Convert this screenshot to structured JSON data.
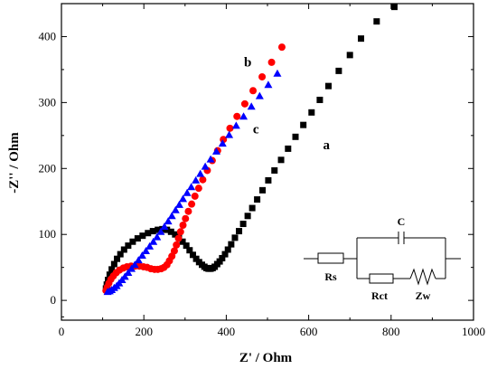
{
  "chart_data": {
    "type": "scatter",
    "xlabel": "Z' / Ohm",
    "ylabel": "-Z'' / Ohm",
    "xlim": [
      0,
      1000
    ],
    "ylim": [
      -30,
      450
    ],
    "xticks": [
      0,
      200,
      400,
      600,
      800,
      1000
    ],
    "yticks": [
      0,
      100,
      200,
      300,
      400
    ],
    "grid": false,
    "series": [
      {
        "name": "a",
        "marker": "square",
        "color": "#000000",
        "x": [
          108,
          110,
          113,
          117,
          122,
          128,
          135,
          143,
          152,
          162,
          173,
          185,
          197,
          210,
          222,
          234,
          245,
          256,
          266,
          276,
          285,
          294,
          303,
          311,
          319,
          327,
          334,
          341,
          347,
          352,
          357,
          362,
          367,
          372,
          378,
          384,
          390,
          397,
          404,
          412,
          421,
          431,
          441,
          452,
          463,
          475,
          488,
          502,
          517,
          533,
          550,
          568,
          587,
          607,
          627,
          648,
          673,
          700,
          727,
          765,
          808
        ],
        "y": [
          18,
          24,
          31,
          39,
          47,
          55,
          63,
          70,
          77,
          83,
          89,
          94,
          98,
          102,
          105,
          107,
          108,
          107,
          104,
          100,
          95,
          89,
          83,
          76,
          69,
          63,
          58,
          54,
          51,
          49,
          48,
          48,
          49,
          51,
          55,
          59,
          64,
          70,
          77,
          85,
          95,
          105,
          116,
          128,
          140,
          153,
          167,
          182,
          197,
          213,
          230,
          248,
          266,
          285,
          304,
          325,
          348,
          372,
          397,
          423,
          445
        ]
      },
      {
        "name": "b",
        "marker": "circle",
        "color": "#ff0000",
        "x": [
          108,
          111,
          115,
          120,
          126,
          133,
          141,
          150,
          159,
          169,
          179,
          189,
          199,
          208,
          217,
          226,
          234,
          242,
          249,
          256,
          262,
          268,
          274,
          279,
          284,
          289,
          295,
          301,
          308,
          316,
          324,
          333,
          343,
          354,
          366,
          379,
          393,
          409,
          426,
          445,
          465,
          487,
          510,
          535
        ],
        "y": [
          15,
          20,
          26,
          32,
          37,
          42,
          46,
          49,
          51,
          52,
          52,
          52,
          51,
          50,
          48,
          47,
          47,
          48,
          50,
          54,
          60,
          67,
          75,
          84,
          94,
          104,
          114,
          124,
          135,
          146,
          158,
          170,
          183,
          197,
          212,
          227,
          244,
          261,
          279,
          298,
          318,
          339,
          361,
          384
        ]
      },
      {
        "name": "c",
        "marker": "triangle",
        "color": "#0000ff",
        "x": [
          112,
          117,
          122,
          128,
          134,
          140,
          147,
          154,
          162,
          170,
          178,
          187,
          196,
          205,
          214,
          223,
          232,
          241,
          250,
          259,
          268,
          277,
          286,
          295,
          305,
          315,
          326,
          337,
          349,
          362,
          376,
          391,
          407,
          424,
          442,
          461,
          481,
          502,
          524
        ],
        "y": [
          13,
          14,
          16,
          19,
          22,
          26,
          31,
          36,
          42,
          48,
          54,
          61,
          68,
          75,
          82,
          89,
          96,
          104,
          112,
          120,
          128,
          137,
          145,
          154,
          163,
          172,
          182,
          192,
          203,
          214,
          226,
          238,
          251,
          265,
          279,
          294,
          310,
          327,
          344
        ]
      }
    ],
    "annotations": [
      {
        "text": "a",
        "x": 643,
        "y": 229
      },
      {
        "text": "b",
        "x": 452,
        "y": 355
      },
      {
        "text": "c",
        "x": 472,
        "y": 253
      }
    ],
    "inset_circuit": {
      "labels": {
        "c": "C",
        "rs": "Rs",
        "rct": "Rct",
        "zw": "Zw"
      }
    }
  }
}
